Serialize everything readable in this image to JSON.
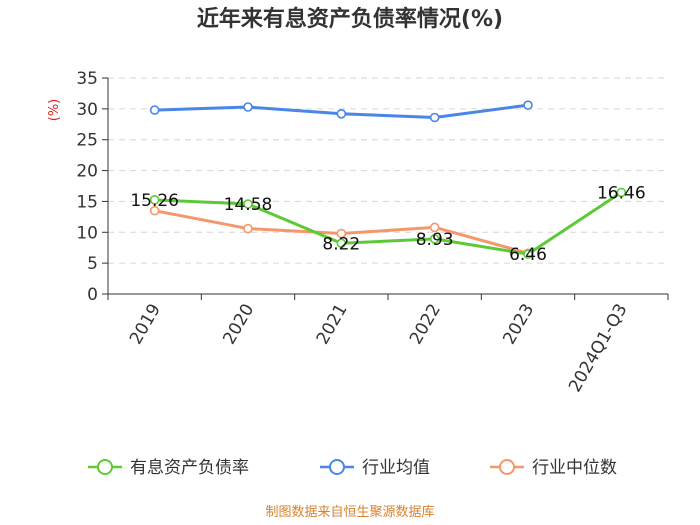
{
  "chart_data": {
    "type": "line",
    "title": "近年来有息资产负债率情况(%)",
    "ylabel": "(%)",
    "xlabel": "",
    "categories": [
      "2019",
      "2020",
      "2021",
      "2022",
      "2023",
      "2024Q1-Q3"
    ],
    "ylim": [
      0,
      35
    ],
    "yticks": [
      0,
      5,
      10,
      15,
      20,
      25,
      30,
      35
    ],
    "grid": true,
    "legend_position": "bottom",
    "series": [
      {
        "name": "有息资产负债率",
        "color": "#5dc936",
        "values": [
          15.26,
          14.58,
          8.22,
          8.93,
          6.46,
          16.46
        ],
        "labels": [
          "15.26",
          "14.58",
          "8.22",
          "8.93",
          "6.46",
          "16.46"
        ]
      },
      {
        "name": "行业均值",
        "color": "#4a86e8",
        "values": [
          29.8,
          30.3,
          29.2,
          28.6,
          30.6,
          null
        ]
      },
      {
        "name": "行业中位数",
        "color": "#f5976a",
        "values": [
          13.5,
          10.6,
          9.8,
          10.8,
          6.6,
          null
        ]
      }
    ]
  },
  "footer": "制图数据来自恒生聚源数据库"
}
